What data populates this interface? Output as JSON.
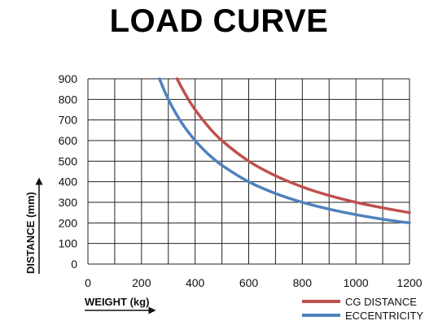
{
  "chart_data": {
    "type": "line",
    "title": "LOAD CURVE",
    "xlabel": "WEIGHT (kg)",
    "ylabel": "DISTANCE (mm)",
    "xlim": [
      0,
      1200
    ],
    "ylim": [
      0,
      900
    ],
    "xticks": [
      0,
      200,
      400,
      600,
      800,
      1000,
      1200
    ],
    "yticks": [
      0,
      100,
      200,
      300,
      400,
      500,
      600,
      700,
      800,
      900
    ],
    "x_grid_step": 100,
    "grid": true,
    "legend_position": "bottom-right",
    "series": [
      {
        "name": "CG DISTANCE",
        "color": "#c0504d",
        "x": [
          333,
          350,
          375,
          400,
          450,
          500,
          600,
          700,
          800,
          900,
          1000,
          1100,
          1200
        ],
        "y": [
          900,
          857,
          800,
          750,
          667,
          600,
          500,
          429,
          375,
          333,
          300,
          273,
          250
        ]
      },
      {
        "name": "ECCENTRICITY",
        "color": "#4f81bd",
        "x": [
          267,
          300,
          350,
          400,
          450,
          500,
          600,
          700,
          800,
          900,
          1000,
          1100,
          1200
        ],
        "y": [
          900,
          800,
          686,
          600,
          533,
          480,
          400,
          343,
          300,
          267,
          240,
          218,
          200
        ]
      }
    ]
  }
}
